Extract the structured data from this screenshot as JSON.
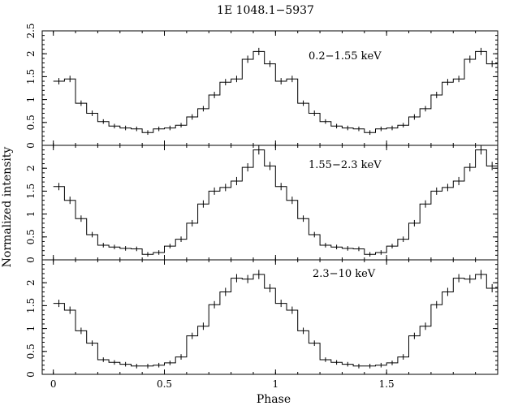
{
  "title": "1E 1048.1−5937",
  "chart_data": {
    "type": "line",
    "title": "1E 1048.1−5937",
    "xlabel": "Phase",
    "ylabel": "Normalized intensity",
    "xlim": [
      -0.05,
      2.0
    ],
    "x_ticks": [
      "0",
      "0.5",
      "1",
      "1.5"
    ],
    "x_tick_values": [
      0,
      0.5,
      1,
      1.5
    ],
    "grid": false,
    "panels": [
      {
        "label": "0.2−1.55 keV",
        "ylim": [
          0,
          2.5
        ],
        "y_ticks": [
          "0",
          "0.5",
          "1",
          "1.5",
          "2",
          "2.5"
        ],
        "y_tick_values": [
          0,
          0.5,
          1,
          1.5,
          2,
          2.5
        ],
        "phase_bins": [
          0.025,
          0.075,
          0.125,
          0.175,
          0.225,
          0.275,
          0.325,
          0.375,
          0.425,
          0.475,
          0.525,
          0.575,
          0.625,
          0.675,
          0.725,
          0.775,
          0.825,
          0.875,
          0.925,
          0.975
        ],
        "values": [
          1.4,
          1.45,
          0.92,
          0.7,
          0.52,
          0.42,
          0.38,
          0.36,
          0.28,
          0.36,
          0.38,
          0.44,
          0.62,
          0.8,
          1.1,
          1.38,
          1.45,
          1.88,
          2.05,
          1.78
        ],
        "errors": [
          0.07,
          0.07,
          0.06,
          0.06,
          0.05,
          0.05,
          0.05,
          0.05,
          0.05,
          0.05,
          0.05,
          0.05,
          0.06,
          0.06,
          0.07,
          0.07,
          0.07,
          0.08,
          0.08,
          0.07
        ]
      },
      {
        "label": "1.55−2.3 keV",
        "ylim": [
          0,
          2.5
        ],
        "y_ticks": [
          "0",
          "0.5",
          "1",
          "1.5",
          "2"
        ],
        "y_tick_values": [
          0,
          0.5,
          1,
          1.5,
          2
        ],
        "phase_bins": [
          0.025,
          0.075,
          0.125,
          0.175,
          0.225,
          0.275,
          0.325,
          0.375,
          0.425,
          0.475,
          0.525,
          0.575,
          0.625,
          0.675,
          0.725,
          0.775,
          0.825,
          0.875,
          0.925,
          0.975
        ],
        "values": [
          1.6,
          1.3,
          0.9,
          0.55,
          0.32,
          0.28,
          0.25,
          0.24,
          0.12,
          0.16,
          0.3,
          0.45,
          0.8,
          1.22,
          1.5,
          1.58,
          1.72,
          2.02,
          2.4,
          2.05
        ],
        "errors": [
          0.08,
          0.08,
          0.07,
          0.06,
          0.05,
          0.05,
          0.05,
          0.05,
          0.05,
          0.05,
          0.05,
          0.06,
          0.07,
          0.08,
          0.08,
          0.08,
          0.09,
          0.09,
          0.1,
          0.09
        ]
      },
      {
        "label": "2.3−10 keV",
        "ylim": [
          0,
          2.5
        ],
        "y_ticks": [
          "0",
          "0.5",
          "1",
          "1.5",
          "2"
        ],
        "y_tick_values": [
          0,
          0.5,
          1,
          1.5,
          2
        ],
        "phase_bins": [
          0.025,
          0.075,
          0.125,
          0.175,
          0.225,
          0.275,
          0.325,
          0.375,
          0.425,
          0.475,
          0.525,
          0.575,
          0.625,
          0.675,
          0.725,
          0.775,
          0.825,
          0.875,
          0.925,
          0.975
        ],
        "values": [
          1.55,
          1.4,
          0.95,
          0.68,
          0.32,
          0.26,
          0.22,
          0.18,
          0.18,
          0.2,
          0.25,
          0.38,
          0.84,
          1.05,
          1.52,
          1.8,
          2.1,
          2.08,
          2.18,
          1.88
        ],
        "errors": [
          0.08,
          0.08,
          0.07,
          0.06,
          0.05,
          0.05,
          0.05,
          0.05,
          0.05,
          0.05,
          0.05,
          0.06,
          0.07,
          0.08,
          0.08,
          0.09,
          0.09,
          0.09,
          0.1,
          0.09
        ]
      }
    ]
  }
}
